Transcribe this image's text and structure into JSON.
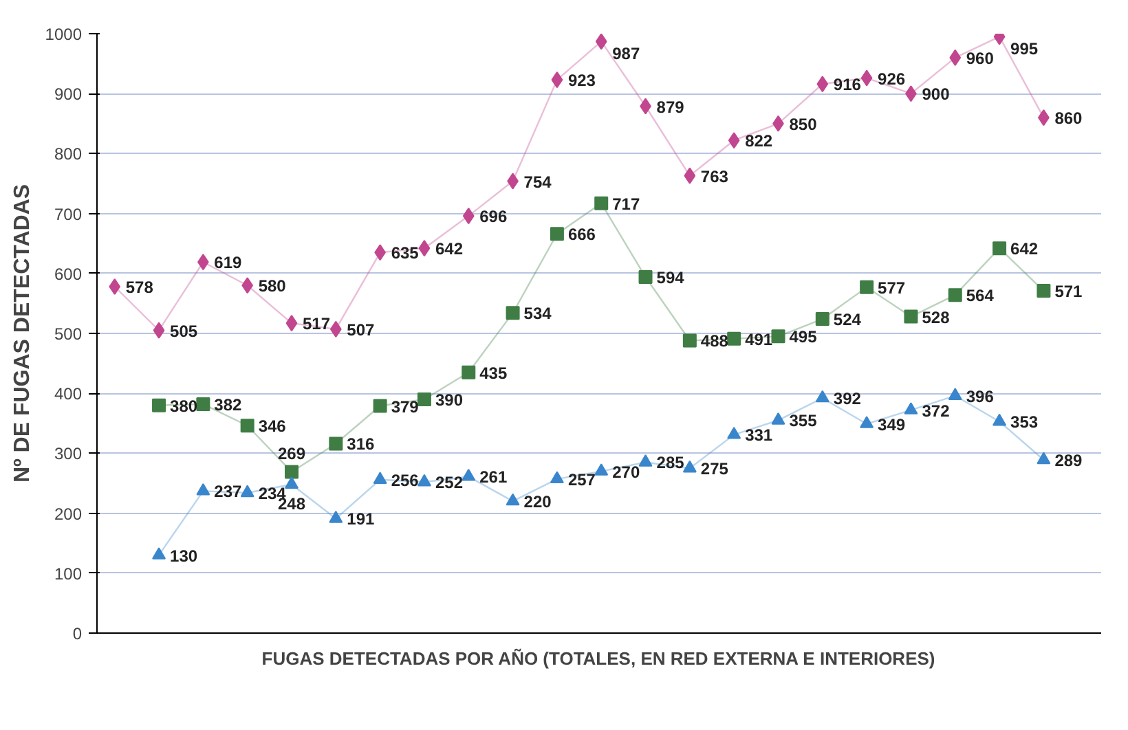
{
  "chart_data": {
    "type": "line",
    "xlabel": "FUGAS DETECTADAS POR AÑO (TOTALES, EN RED EXTERNA E INTERIORES)",
    "ylabel": "Nº DE FUGAS DETECTADAS",
    "categories": [
      null,
      null,
      null,
      null,
      null,
      null,
      null,
      null,
      null,
      null,
      null,
      null,
      null,
      null,
      null,
      null,
      null,
      null,
      null,
      null,
      null,
      null
    ],
    "series": [
      {
        "color": "#c2468f",
        "marker": "diamond",
        "values": [
          578,
          505,
          619,
          580,
          517,
          507,
          635,
          642,
          696,
          754,
          923,
          987,
          879,
          763,
          822,
          850,
          916,
          926,
          900,
          960,
          995,
          860
        ]
      },
      {
        "color": "#3f7d45",
        "marker": "square",
        "values": [
          null,
          380,
          382,
          346,
          269,
          316,
          379,
          390,
          435,
          534,
          666,
          717,
          594,
          488,
          491,
          495,
          524,
          577,
          528,
          564,
          642,
          571
        ]
      },
      {
        "color": "#3a86cc",
        "marker": "triangle",
        "values": [
          null,
          130,
          237,
          234,
          248,
          191,
          256,
          252,
          261,
          220,
          257,
          270,
          285,
          275,
          331,
          355,
          392,
          349,
          372,
          396,
          353,
          289
        ]
      }
    ],
    "ylim": [
      0,
      1000
    ],
    "yticks": [
      0,
      100,
      200,
      300,
      400,
      500,
      600,
      700,
      800,
      900,
      1000
    ],
    "grid": "y",
    "data_labels": true
  }
}
